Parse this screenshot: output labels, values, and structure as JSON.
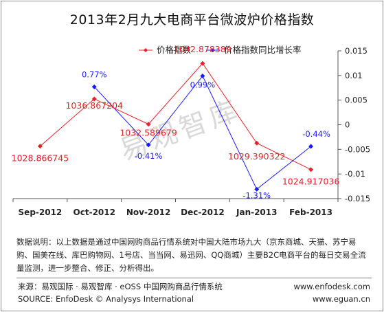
{
  "title": "2013年2月九大电商平台微波炉价格指数",
  "watermark": "易观智库",
  "chart_data": {
    "type": "line",
    "categories": [
      "Sep-2012",
      "Oct-2012",
      "Nov-2012",
      "Dec-2012",
      "Jan-2013",
      "Feb-2013"
    ],
    "series": [
      {
        "name": "价格指数",
        "axis": "left",
        "color": "#e8202a",
        "values": [
          1028.866745,
          1036.867204,
          1032.589679,
          1042.878389,
          1029.390322,
          1024.917036
        ],
        "labels": [
          "1028.866745",
          "1036.867204",
          "1032.589679",
          "1042.878389",
          "1029.390322",
          "1024.917036"
        ]
      },
      {
        "name": "价格指数同比增长率",
        "axis": "right",
        "color": "#1a1aff",
        "values": [
          null,
          0.0077,
          -0.0041,
          0.0099,
          -0.0131,
          -0.0044
        ],
        "labels": [
          "",
          "0.77%",
          "-0.41%",
          "0.99%",
          "-1.31%",
          "-0.44%"
        ]
      }
    ],
    "left_ylim": [
      1020,
      1045
    ],
    "right_ylim": [
      -0.015,
      0.015
    ],
    "right_ticks": [
      "0.015",
      "0.01",
      "0.005",
      "0",
      "-0.005",
      "-0.01",
      "-0.015"
    ],
    "legend_position": "top"
  },
  "description": "数据说明：以上数据是通过中国网购商品行情系统对中国大陆市场九大（京东商城、天猫、苏宁易购、国美在线、库巴购物网、1号店、当当网、易迅网、QQ商城）主要B2C电商平台的每日交易全流量监测，进一步整合、修正、分析得出。",
  "footer": {
    "source_cn": "来源：易观国际 · 易观智库 · eOSS 中国网购商品行情系统",
    "source_en": "SOURCE: EnfoDesk © Analysys International",
    "url1": "www.enfodesk.com",
    "url2": "www.eguan.cn"
  }
}
